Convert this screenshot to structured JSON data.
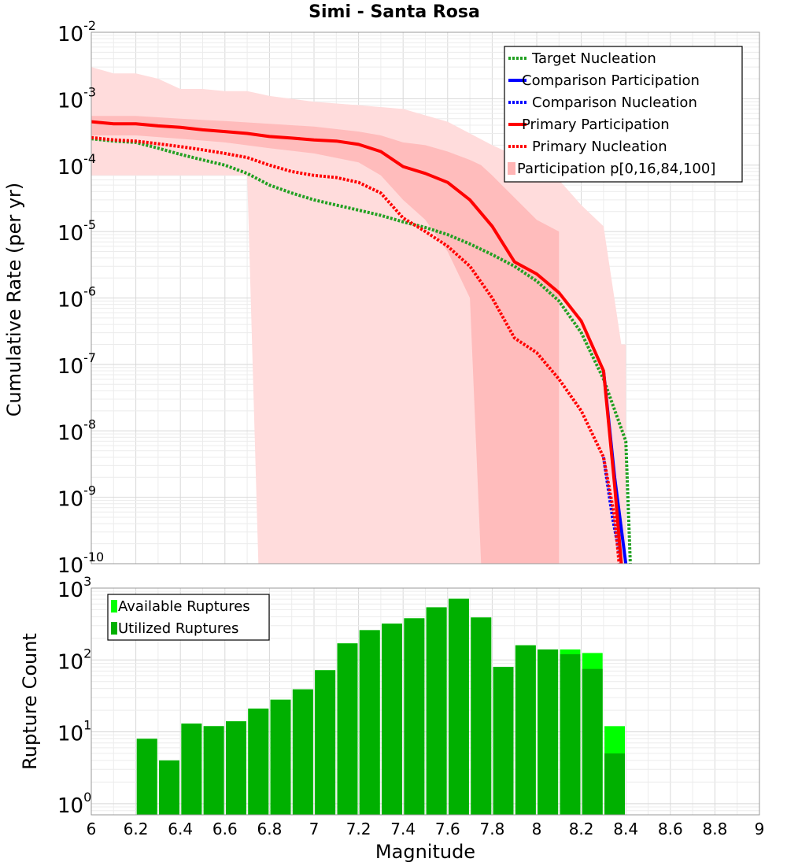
{
  "chart_data": [
    {
      "type": "line",
      "title": "Simi - Santa Rosa",
      "xlabel": "",
      "ylabel": "Cumulative Rate (per yr)",
      "yscale": "log",
      "xlim": [
        6,
        9
      ],
      "ylim": [
        1e-10,
        0.01
      ],
      "ytick_exponents": [
        -2,
        -3,
        -4,
        -5,
        -6,
        -7,
        -8,
        -9,
        -10
      ],
      "grid": true,
      "legend_position": "top-right",
      "legend": [
        {
          "label": "Target Nucleation",
          "color": "#22a022",
          "style": "dotted"
        },
        {
          "label": "Comparison Participation",
          "color": "#0000ff",
          "style": "solid"
        },
        {
          "label": "Comparison Nucleation",
          "color": "#0000ff",
          "style": "dotted"
        },
        {
          "label": "Primary Participation",
          "color": "#ff0000",
          "style": "solid"
        },
        {
          "label": "Primary Nucleation",
          "color": "#ff0000",
          "style": "dotted"
        },
        {
          "label": "Participation p[0,16,84,100]",
          "color": "#ffb4b4",
          "style": "band"
        }
      ],
      "bands": [
        {
          "name": "Participation p[0,100]",
          "color": "#ffdcdc",
          "x": [
            6.0,
            6.1,
            6.2,
            6.3,
            6.4,
            6.5,
            6.6,
            6.7,
            6.75,
            6.8,
            7.0,
            7.2,
            7.4,
            7.6,
            7.8,
            8.0,
            8.1,
            8.2,
            8.3,
            8.38,
            8.4
          ],
          "upper": [
            0.003,
            0.0024,
            0.0024,
            0.002,
            0.0014,
            0.0014,
            0.0013,
            0.0013,
            0.0012,
            0.0011,
            0.0009,
            0.0008,
            0.0007,
            0.00045,
            0.0002,
            0.0001,
            6e-05,
            2.5e-05,
            1.2e-05,
            2e-07,
            2e-07
          ],
          "lower": [
            7e-05,
            7e-05,
            7e-05,
            7e-05,
            7e-05,
            7e-05,
            7e-05,
            7e-05,
            1e-10,
            1e-10,
            1e-10,
            1e-10,
            1e-10,
            1e-10,
            1e-10,
            1e-10,
            1e-10,
            1e-10,
            1e-10,
            1e-10,
            1e-10
          ]
        },
        {
          "name": "Participation p[16,84]",
          "color": "#ffbcbc",
          "x": [
            6.0,
            6.2,
            6.4,
            6.6,
            6.8,
            7.0,
            7.2,
            7.3,
            7.4,
            7.5,
            7.6,
            7.7,
            7.75,
            7.8,
            8.0,
            8.1
          ],
          "upper": [
            0.00055,
            0.00055,
            0.0005,
            0.00046,
            0.00042,
            0.00038,
            0.00032,
            0.00028,
            0.00022,
            0.0002,
            0.00016,
            0.00012,
            0.0001,
            7e-05,
            1.5e-05,
            1e-05
          ],
          "lower": [
            0.00028,
            0.00028,
            0.00025,
            0.00022,
            0.00018,
            0.00015,
            0.00011,
            7e-05,
            3e-05,
            1.5e-05,
            5e-06,
            1e-06,
            1e-10,
            1e-10,
            1e-10,
            1e-10
          ]
        }
      ],
      "series": [
        {
          "name": "Target Nucleation",
          "color": "#22a022",
          "style": "dotted",
          "x": [
            6.0,
            6.1,
            6.2,
            6.3,
            6.4,
            6.5,
            6.6,
            6.7,
            6.8,
            6.9,
            7.0,
            7.1,
            7.2,
            7.3,
            7.4,
            7.5,
            7.6,
            7.7,
            7.8,
            7.9,
            8.0,
            8.1,
            8.2,
            8.3,
            8.4,
            8.42
          ],
          "values": [
            0.00025,
            0.00023,
            0.00022,
            0.00018,
            0.000145,
            0.00012,
            0.0001,
            7.5e-05,
            5e-05,
            3.8e-05,
            3e-05,
            2.5e-05,
            2.1e-05,
            1.75e-05,
            1.4e-05,
            1.15e-05,
            9e-06,
            6.5e-06,
            4.5e-06,
            3e-06,
            1.8e-06,
            9e-07,
            3e-07,
            6e-08,
            7e-09,
            1e-10
          ]
        },
        {
          "name": "Comparison Participation",
          "color": "#0000ff",
          "style": "solid",
          "x": [
            8.3,
            8.35,
            8.4
          ],
          "values": [
            8e-08,
            2e-09,
            1e-10
          ]
        },
        {
          "name": "Comparison Nucleation",
          "color": "#0000ff",
          "style": "dotted",
          "x": [
            8.3,
            8.34,
            8.38
          ],
          "values": [
            4e-09,
            5e-10,
            1e-10
          ]
        },
        {
          "name": "Primary Participation",
          "color": "#ff0000",
          "style": "solid",
          "x": [
            6.0,
            6.1,
            6.2,
            6.3,
            6.4,
            6.5,
            6.6,
            6.7,
            6.8,
            6.9,
            7.0,
            7.1,
            7.2,
            7.3,
            7.4,
            7.5,
            7.6,
            7.7,
            7.8,
            7.9,
            8.0,
            8.1,
            8.2,
            8.3,
            8.35,
            8.38
          ],
          "values": [
            0.00045,
            0.00042,
            0.00042,
            0.00039,
            0.00037,
            0.00034,
            0.00032,
            0.0003,
            0.00027,
            0.000255,
            0.00024,
            0.00023,
            0.000205,
            0.00016,
            9.5e-05,
            7.5e-05,
            5.5e-05,
            3e-05,
            1.2e-05,
            3.5e-06,
            2.3e-06,
            1.2e-06,
            4.5e-07,
            8e-08,
            1.5e-09,
            1e-10
          ]
        },
        {
          "name": "Primary Nucleation",
          "color": "#ff0000",
          "style": "dotted",
          "x": [
            6.0,
            6.1,
            6.2,
            6.3,
            6.4,
            6.5,
            6.6,
            6.7,
            6.8,
            6.9,
            7.0,
            7.1,
            7.2,
            7.3,
            7.4,
            7.5,
            7.6,
            7.7,
            7.8,
            7.9,
            8.0,
            8.1,
            8.2,
            8.3,
            8.35,
            8.37
          ],
          "values": [
            0.00026,
            0.00024,
            0.00023,
            0.00021,
            0.00019,
            0.00017,
            0.00015,
            0.00013,
            0.0001,
            8e-05,
            7e-05,
            6.5e-05,
            5.5e-05,
            3.8e-05,
            1.6e-05,
            1e-05,
            6e-06,
            3e-06,
            1e-06,
            2.5e-07,
            1.5e-07,
            6e-08,
            2e-08,
            4e-09,
            5e-10,
            1e-10
          ]
        }
      ]
    },
    {
      "type": "bar",
      "title": "",
      "xlabel": "Magnitude",
      "ylabel": "Rupture Count",
      "yscale": "log",
      "xlim": [
        6,
        9
      ],
      "ylim": [
        0.7,
        1000
      ],
      "ytick_exponents": [
        3,
        2,
        1,
        0
      ],
      "xticks": [
        "6",
        "6.2",
        "6.4",
        "6.6",
        "6.8",
        "7",
        "7.2",
        "7.4",
        "7.6",
        "7.8",
        "8",
        "8.2",
        "8.4",
        "8.6",
        "8.8",
        "9"
      ],
      "bin_width": 0.1,
      "legend_position": "top-left",
      "legend": [
        {
          "label": "Available Ruptures",
          "color": "#00ff00"
        },
        {
          "label": "Utilized Ruptures",
          "color": "#00b000"
        }
      ],
      "bin_centers": [
        6.25,
        6.35,
        6.45,
        6.55,
        6.65,
        6.75,
        6.85,
        6.95,
        7.05,
        7.15,
        7.25,
        7.35,
        7.45,
        7.55,
        7.65,
        7.75,
        7.85,
        7.95,
        8.05,
        8.15,
        8.25,
        8.35
      ],
      "series": [
        {
          "name": "Available Ruptures",
          "values": [
            8,
            4,
            13,
            12,
            14,
            21,
            28,
            39,
            72,
            170,
            260,
            320,
            380,
            540,
            710,
            390,
            80,
            160,
            140,
            140,
            125,
            12
          ]
        },
        {
          "name": "Utilized Ruptures",
          "values": [
            8,
            4,
            13,
            12,
            14,
            21,
            28,
            39,
            72,
            170,
            260,
            320,
            380,
            540,
            710,
            390,
            80,
            160,
            140,
            120,
            75,
            5
          ]
        }
      ]
    }
  ]
}
